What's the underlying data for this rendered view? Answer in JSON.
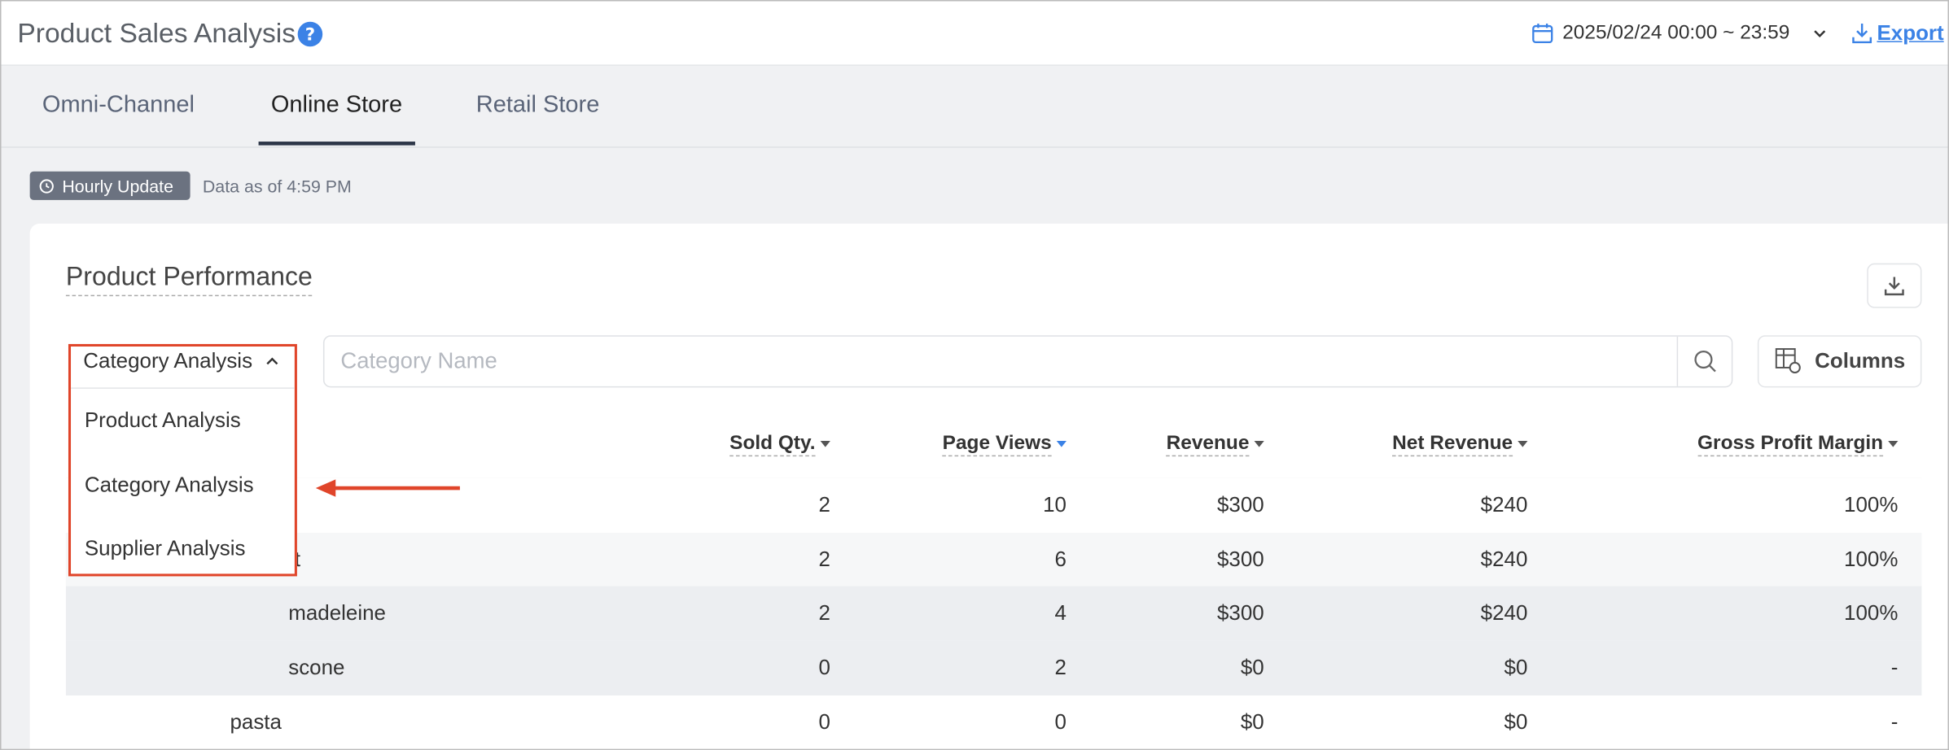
{
  "header": {
    "title": "Product Sales Analysis",
    "date_range": "2025/02/24 00:00 ~ 23:59",
    "export": "Export"
  },
  "tabs": [
    "Omni-Channel",
    "Online Store",
    "Retail Store"
  ],
  "active_tab": 1,
  "status": {
    "badge": "Hourly Update",
    "note": "Data as of 4:59 PM"
  },
  "section": {
    "title": "Product Performance"
  },
  "dropdown": {
    "selected": "Category Analysis",
    "options": [
      "Product Analysis",
      "Category Analysis",
      "Supplier Analysis"
    ]
  },
  "search": {
    "placeholder": "Category Name"
  },
  "columns_button": "Columns",
  "table": {
    "headers": [
      "Sold Qty.",
      "Page Views",
      "Revenue",
      "Net Revenue",
      "Gross Profit Margin"
    ],
    "rows": [
      {
        "cells": [
          "2",
          "10",
          "$300",
          "$240",
          "100%"
        ]
      },
      {
        "label": "t",
        "cells": [
          "2",
          "6",
          "$300",
          "$240",
          "100%"
        ]
      },
      {
        "label": "madeleine",
        "cells": [
          "2",
          "4",
          "$300",
          "$240",
          "100%"
        ]
      },
      {
        "label": "scone",
        "cells": [
          "0",
          "2",
          "$0",
          "$0",
          "-"
        ]
      },
      {
        "label": "pasta",
        "cells": [
          "0",
          "0",
          "$0",
          "$0",
          "-"
        ]
      }
    ]
  }
}
